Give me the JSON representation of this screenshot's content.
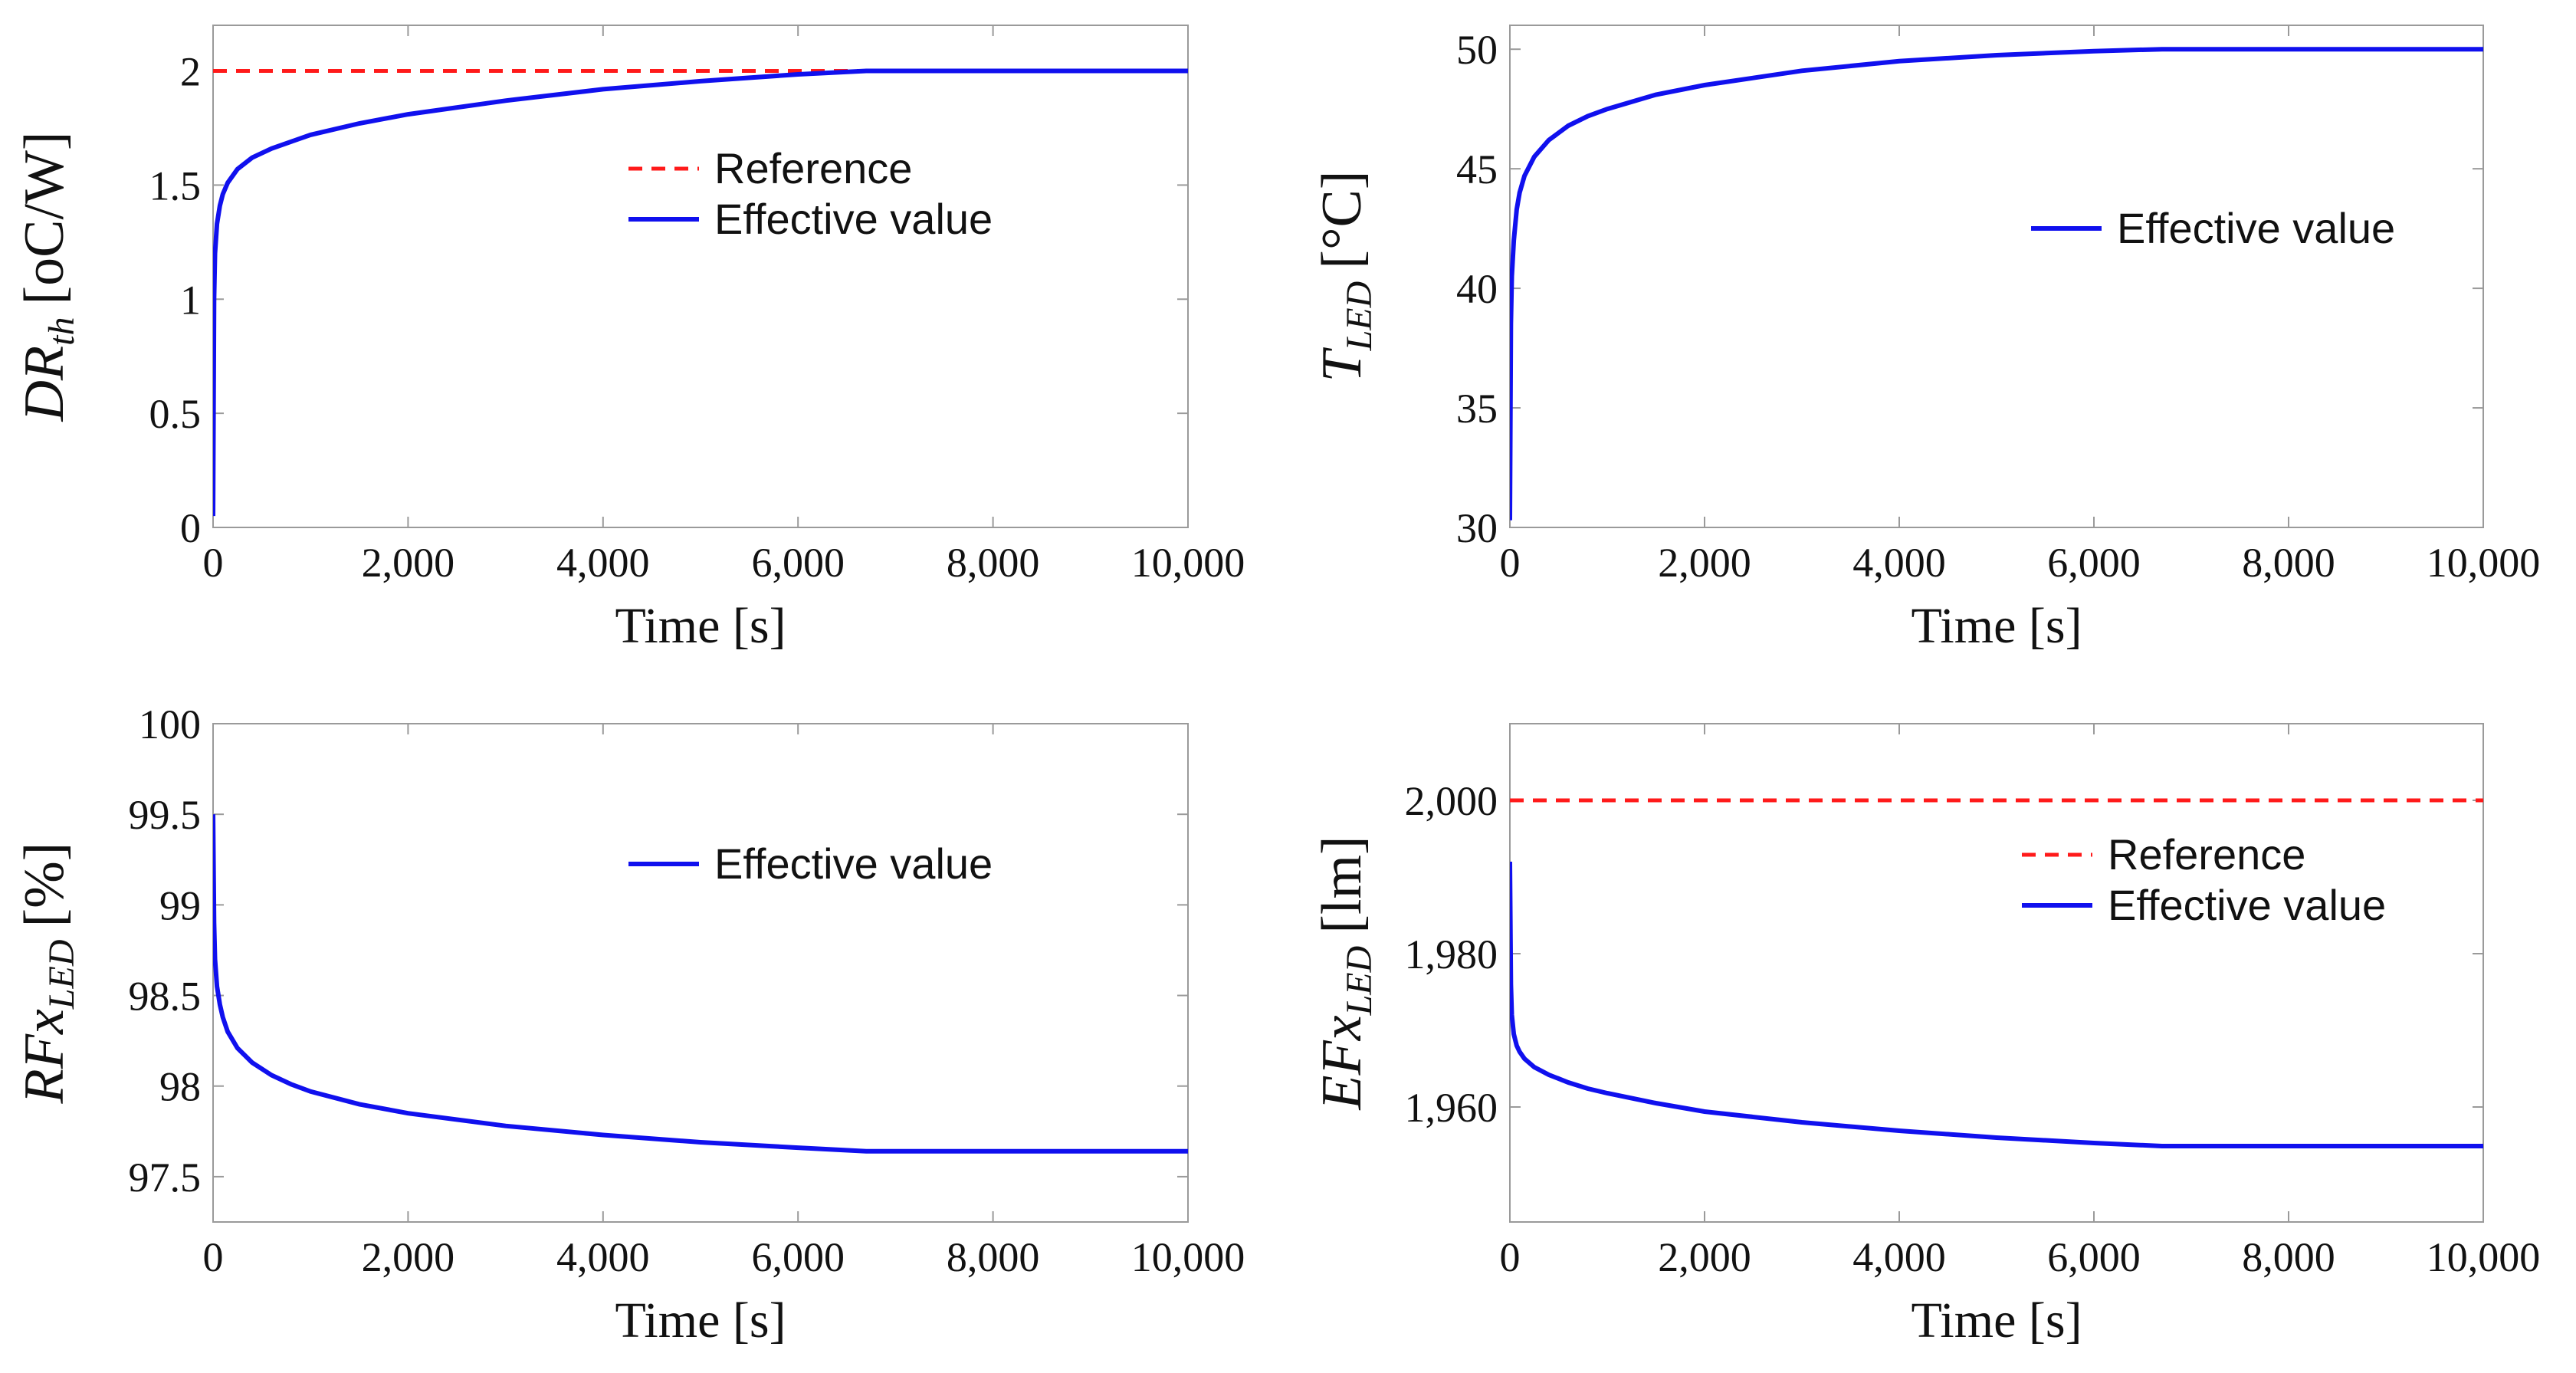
{
  "colors": {
    "reference": "#ff1a1a",
    "effective": "#1010ee",
    "axis": "#9a9a9a",
    "text": "#111111"
  },
  "chart_data": [
    {
      "type": "line",
      "id": "dr-th",
      "ylabel": "DR",
      "ylabel_sub": "th",
      "ylabel_unit": "[oC/W]",
      "xlabel": "Time [s]",
      "xlim": [
        0,
        10000
      ],
      "ylim": [
        0,
        2.2
      ],
      "xticks": [
        0,
        2000,
        4000,
        6000,
        8000,
        10000
      ],
      "xtick_labels": [
        "0",
        "2,000",
        "4,000",
        "6,000",
        "8,000",
        "10,000"
      ],
      "yticks": [
        0,
        0.5,
        1,
        1.5,
        2
      ],
      "ytick_labels": [
        "0",
        "0.5",
        "1",
        "1.5",
        "2"
      ],
      "legend": [
        "Reference",
        "Effective value"
      ],
      "series": [
        {
          "name": "Reference",
          "style": "dashed",
          "x": [
            0,
            10000
          ],
          "y": [
            2,
            2
          ]
        },
        {
          "name": "Effective value",
          "style": "solid",
          "x": [
            0,
            10,
            20,
            40,
            70,
            100,
            150,
            250,
            400,
            600,
            800,
            1000,
            1500,
            2000,
            3000,
            4000,
            5000,
            6000,
            6700,
            8000,
            10000
          ],
          "y": [
            0.05,
            1.0,
            1.2,
            1.33,
            1.41,
            1.46,
            1.51,
            1.57,
            1.62,
            1.66,
            1.69,
            1.72,
            1.77,
            1.81,
            1.87,
            1.92,
            1.955,
            1.985,
            2.0,
            2.0,
            2.0
          ]
        }
      ]
    },
    {
      "type": "line",
      "id": "t-led",
      "ylabel": "T",
      "ylabel_sub": "LED",
      "ylabel_unit": "[°C]",
      "xlabel": "Time [s]",
      "xlim": [
        0,
        10000
      ],
      "ylim": [
        30,
        51
      ],
      "xticks": [
        0,
        2000,
        4000,
        6000,
        8000,
        10000
      ],
      "xtick_labels": [
        "0",
        "2,000",
        "4,000",
        "6,000",
        "8,000",
        "10,000"
      ],
      "yticks": [
        30,
        35,
        40,
        45,
        50
      ],
      "ytick_labels": [
        "30",
        "35",
        "40",
        "45",
        "50"
      ],
      "legend": [
        "Effective value"
      ],
      "series": [
        {
          "name": "Effective value",
          "style": "solid",
          "x": [
            0,
            10,
            20,
            40,
            70,
            100,
            150,
            250,
            400,
            600,
            800,
            1000,
            1500,
            2000,
            3000,
            4000,
            5000,
            6000,
            6700,
            8000,
            10000
          ],
          "y": [
            30.3,
            38.5,
            40.5,
            42.0,
            43.3,
            44.0,
            44.7,
            45.5,
            46.2,
            46.8,
            47.2,
            47.5,
            48.1,
            48.5,
            49.1,
            49.5,
            49.75,
            49.92,
            50.0,
            50.0,
            50.0
          ]
        }
      ]
    },
    {
      "type": "line",
      "id": "rfx-led",
      "ylabel": "RFx",
      "ylabel_sub": "LED",
      "ylabel_unit": "[%]",
      "xlabel": "Time [s]",
      "xlim": [
        0,
        10000
      ],
      "ylim": [
        97.25,
        100
      ],
      "xticks": [
        0,
        2000,
        4000,
        6000,
        8000,
        10000
      ],
      "xtick_labels": [
        "0",
        "2,000",
        "4,000",
        "6,000",
        "8,000",
        "10,000"
      ],
      "yticks": [
        97.5,
        98,
        98.5,
        99,
        99.5,
        100
      ],
      "ytick_labels": [
        "97.5",
        "98",
        "98.5",
        "99",
        "99.5",
        "100"
      ],
      "legend": [
        "Effective value"
      ],
      "series": [
        {
          "name": "Effective value",
          "style": "solid",
          "x": [
            0,
            10,
            20,
            40,
            70,
            100,
            150,
            250,
            400,
            600,
            800,
            1000,
            1500,
            2000,
            3000,
            4000,
            5000,
            6000,
            6700,
            8000,
            10000
          ],
          "y": [
            99.5,
            98.9,
            98.7,
            98.55,
            98.45,
            98.38,
            98.3,
            98.21,
            98.13,
            98.06,
            98.01,
            97.97,
            97.9,
            97.85,
            97.78,
            97.73,
            97.69,
            97.66,
            97.64,
            97.64,
            97.64
          ]
        }
      ]
    },
    {
      "type": "line",
      "id": "efx-led",
      "ylabel": "EFx",
      "ylabel_sub": "LED",
      "ylabel_unit": "[lm]",
      "xlabel": "Time [s]",
      "xlim": [
        0,
        10000
      ],
      "ylim": [
        1945,
        2010
      ],
      "xticks": [
        0,
        2000,
        4000,
        6000,
        8000,
        10000
      ],
      "xtick_labels": [
        "0",
        "2,000",
        "4,000",
        "6,000",
        "8,000",
        "10,000"
      ],
      "yticks": [
        1960,
        1980,
        2000
      ],
      "ytick_labels": [
        "1,960",
        "1,980",
        "2,000"
      ],
      "legend": [
        "Reference",
        "Effective value"
      ],
      "series": [
        {
          "name": "Reference",
          "style": "dashed",
          "x": [
            0,
            10000
          ],
          "y": [
            2000,
            2000
          ]
        },
        {
          "name": "Effective value",
          "style": "solid",
          "x": [
            0,
            10,
            20,
            40,
            70,
            100,
            150,
            250,
            400,
            600,
            800,
            1000,
            1500,
            2000,
            3000,
            4000,
            5000,
            6000,
            6700,
            8000,
            10000
          ],
          "y": [
            1992,
            1976,
            1972,
            1969.5,
            1968,
            1967.2,
            1966.3,
            1965.2,
            1964.2,
            1963.2,
            1962.4,
            1961.8,
            1960.5,
            1959.4,
            1958,
            1956.9,
            1956,
            1955.3,
            1954.9,
            1954.9,
            1954.9
          ]
        }
      ]
    }
  ]
}
